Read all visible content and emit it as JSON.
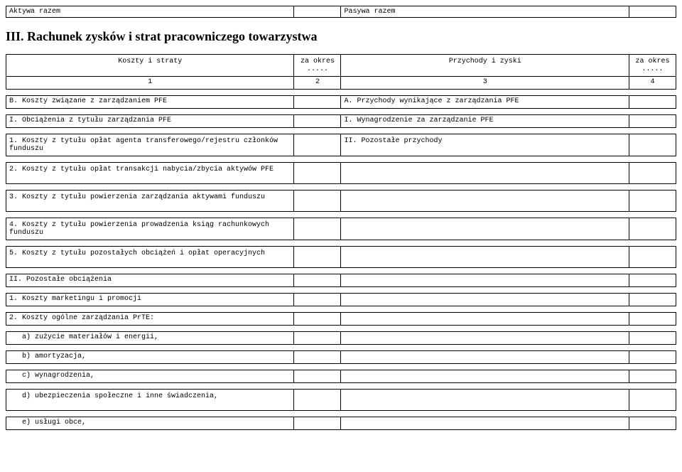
{
  "topRow": {
    "leftLabel": "Aktywa razem",
    "rightLabel": "Pasywa razem"
  },
  "sectionTitle": "III. Rachunek zysków i strat pracowniczego towarzystwa",
  "headers": {
    "costs": "Koszty i straty",
    "period1": "za okres .....",
    "income": "Przychody i zyski",
    "period2": "za okres .....",
    "c1": "1",
    "c2": "2",
    "c3": "3",
    "c4": "4"
  },
  "rows": {
    "B": "B. Koszty związane z zarządzaniem PFE",
    "A": "A. Przychody wynikające z zarządzania PFE",
    "I_left": "I. Obciążenia z tytułu zarządzania PFE",
    "I_right": "I. Wynagrodzenie za zarządzanie PFE",
    "l1": "1. Koszty z tytułu opłat agenta transferowego/rejestru członków funduszu",
    "II_right": "II. Pozostałe przychody",
    "l2": "2. Koszty z tytułu opłat transakcji nabycia/zbycia aktywów PFE",
    "l3": "3. Koszty z tytułu powierzenia zarządzania aktywami funduszu",
    "l4": "4. Koszty z tytułu powierzenia prowadzenia ksiąg rachunkowych funduszu",
    "l5": "5. Koszty z tytułu pozostałych obciążeń i opłat operacyjnych",
    "II_left": "II. Pozostałe obciążenia",
    "m1": "1. Koszty marketingu i promocji",
    "m2": "2. Koszty ogólne zarządzania PrTE:",
    "sa": "a) zużycie materiałów i energii,",
    "sb": "b) amortyzacja,",
    "sc": "c) wynagrodzenia,",
    "sd": "d) ubezpieczenia społeczne i inne świadczenia,",
    "se": "e) usługi obce,"
  }
}
